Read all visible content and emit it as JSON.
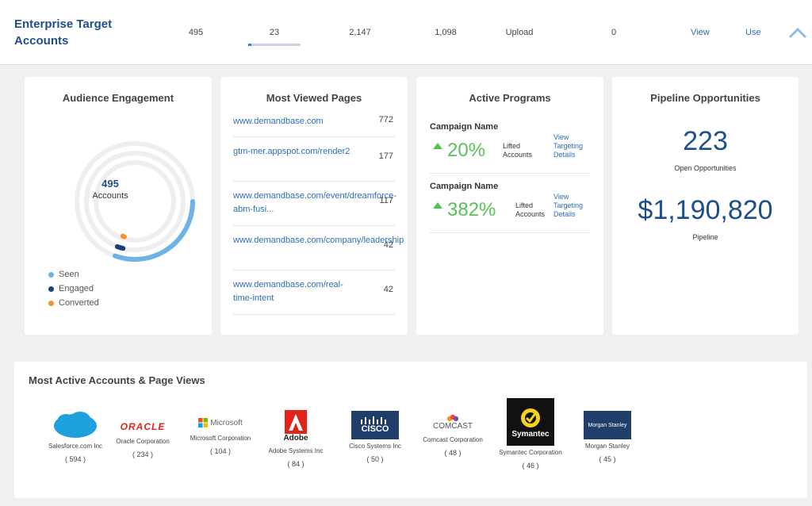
{
  "header": {
    "title": "Enterprise Target Accounts",
    "stats": [
      "495",
      "23",
      "2,147",
      "1,098",
      "Upload",
      "0"
    ],
    "links": {
      "view": "View",
      "use": "Use"
    }
  },
  "audience": {
    "title": "Audience Engagement",
    "count": "495",
    "count_label": "Accounts",
    "legend": [
      {
        "label": "Seen",
        "color": "#6cb4e6"
      },
      {
        "label": "Engaged",
        "color": "#1f3f7a"
      },
      {
        "label": "Converted",
        "color": "#f0942c"
      }
    ]
  },
  "pages": {
    "title": "Most Viewed Pages",
    "items": [
      {
        "url": "www.demandbase.com",
        "count": "772"
      },
      {
        "url": "gtm-mer.appspot.com/render2",
        "count": "177"
      },
      {
        "url": "www.demandbase.com/event/dreamforce-abm-fusi...",
        "count": "117"
      },
      {
        "url": "www.demandbase.com/company/leadership",
        "count": "42"
      },
      {
        "url": "www.demandbase.com/real-time-intent",
        "count": "42"
      }
    ]
  },
  "programs": {
    "title": "Active Programs",
    "items": [
      {
        "name": "Campaign Name",
        "percent": "20%",
        "lifted": "Lifted Accounts",
        "details": "View Targeting Details"
      },
      {
        "name": "Campaign Name",
        "percent": "382%",
        "lifted": "Lifted Accounts",
        "details": "View Targeting Details"
      }
    ]
  },
  "pipeline": {
    "title": "Pipeline Opportunities",
    "opps": "223",
    "opps_label": "Open Opportunities",
    "value": "$1,190,820",
    "value_label": "Pipeline"
  },
  "accounts": {
    "title": "Most Active Accounts & Page Views",
    "items": [
      {
        "name": "Salesforce.com Inc",
        "count": "( 594 )",
        "logo": "salesforce"
      },
      {
        "name": "Oracle Corporation",
        "count": "( 234 )",
        "logo": "ORACLE"
      },
      {
        "name": "Microsoft Corporation",
        "count": "( 104 )",
        "logo": "Microsoft"
      },
      {
        "name": "Adobe Systems Inc",
        "count": "( 84 )",
        "logo": "Adobe"
      },
      {
        "name": "Cisco Systems Inc",
        "count": "( 50 )",
        "logo": "CISCO"
      },
      {
        "name": "Comcast Corporation",
        "count": "( 48 )",
        "logo": "COMCAST"
      },
      {
        "name": "Symantec Corporation",
        "count": "( 46 )",
        "logo": "Symantec"
      },
      {
        "name": "Morgan Stanley",
        "count": "( 45 )",
        "logo": "Morgan Stanley"
      }
    ]
  }
}
